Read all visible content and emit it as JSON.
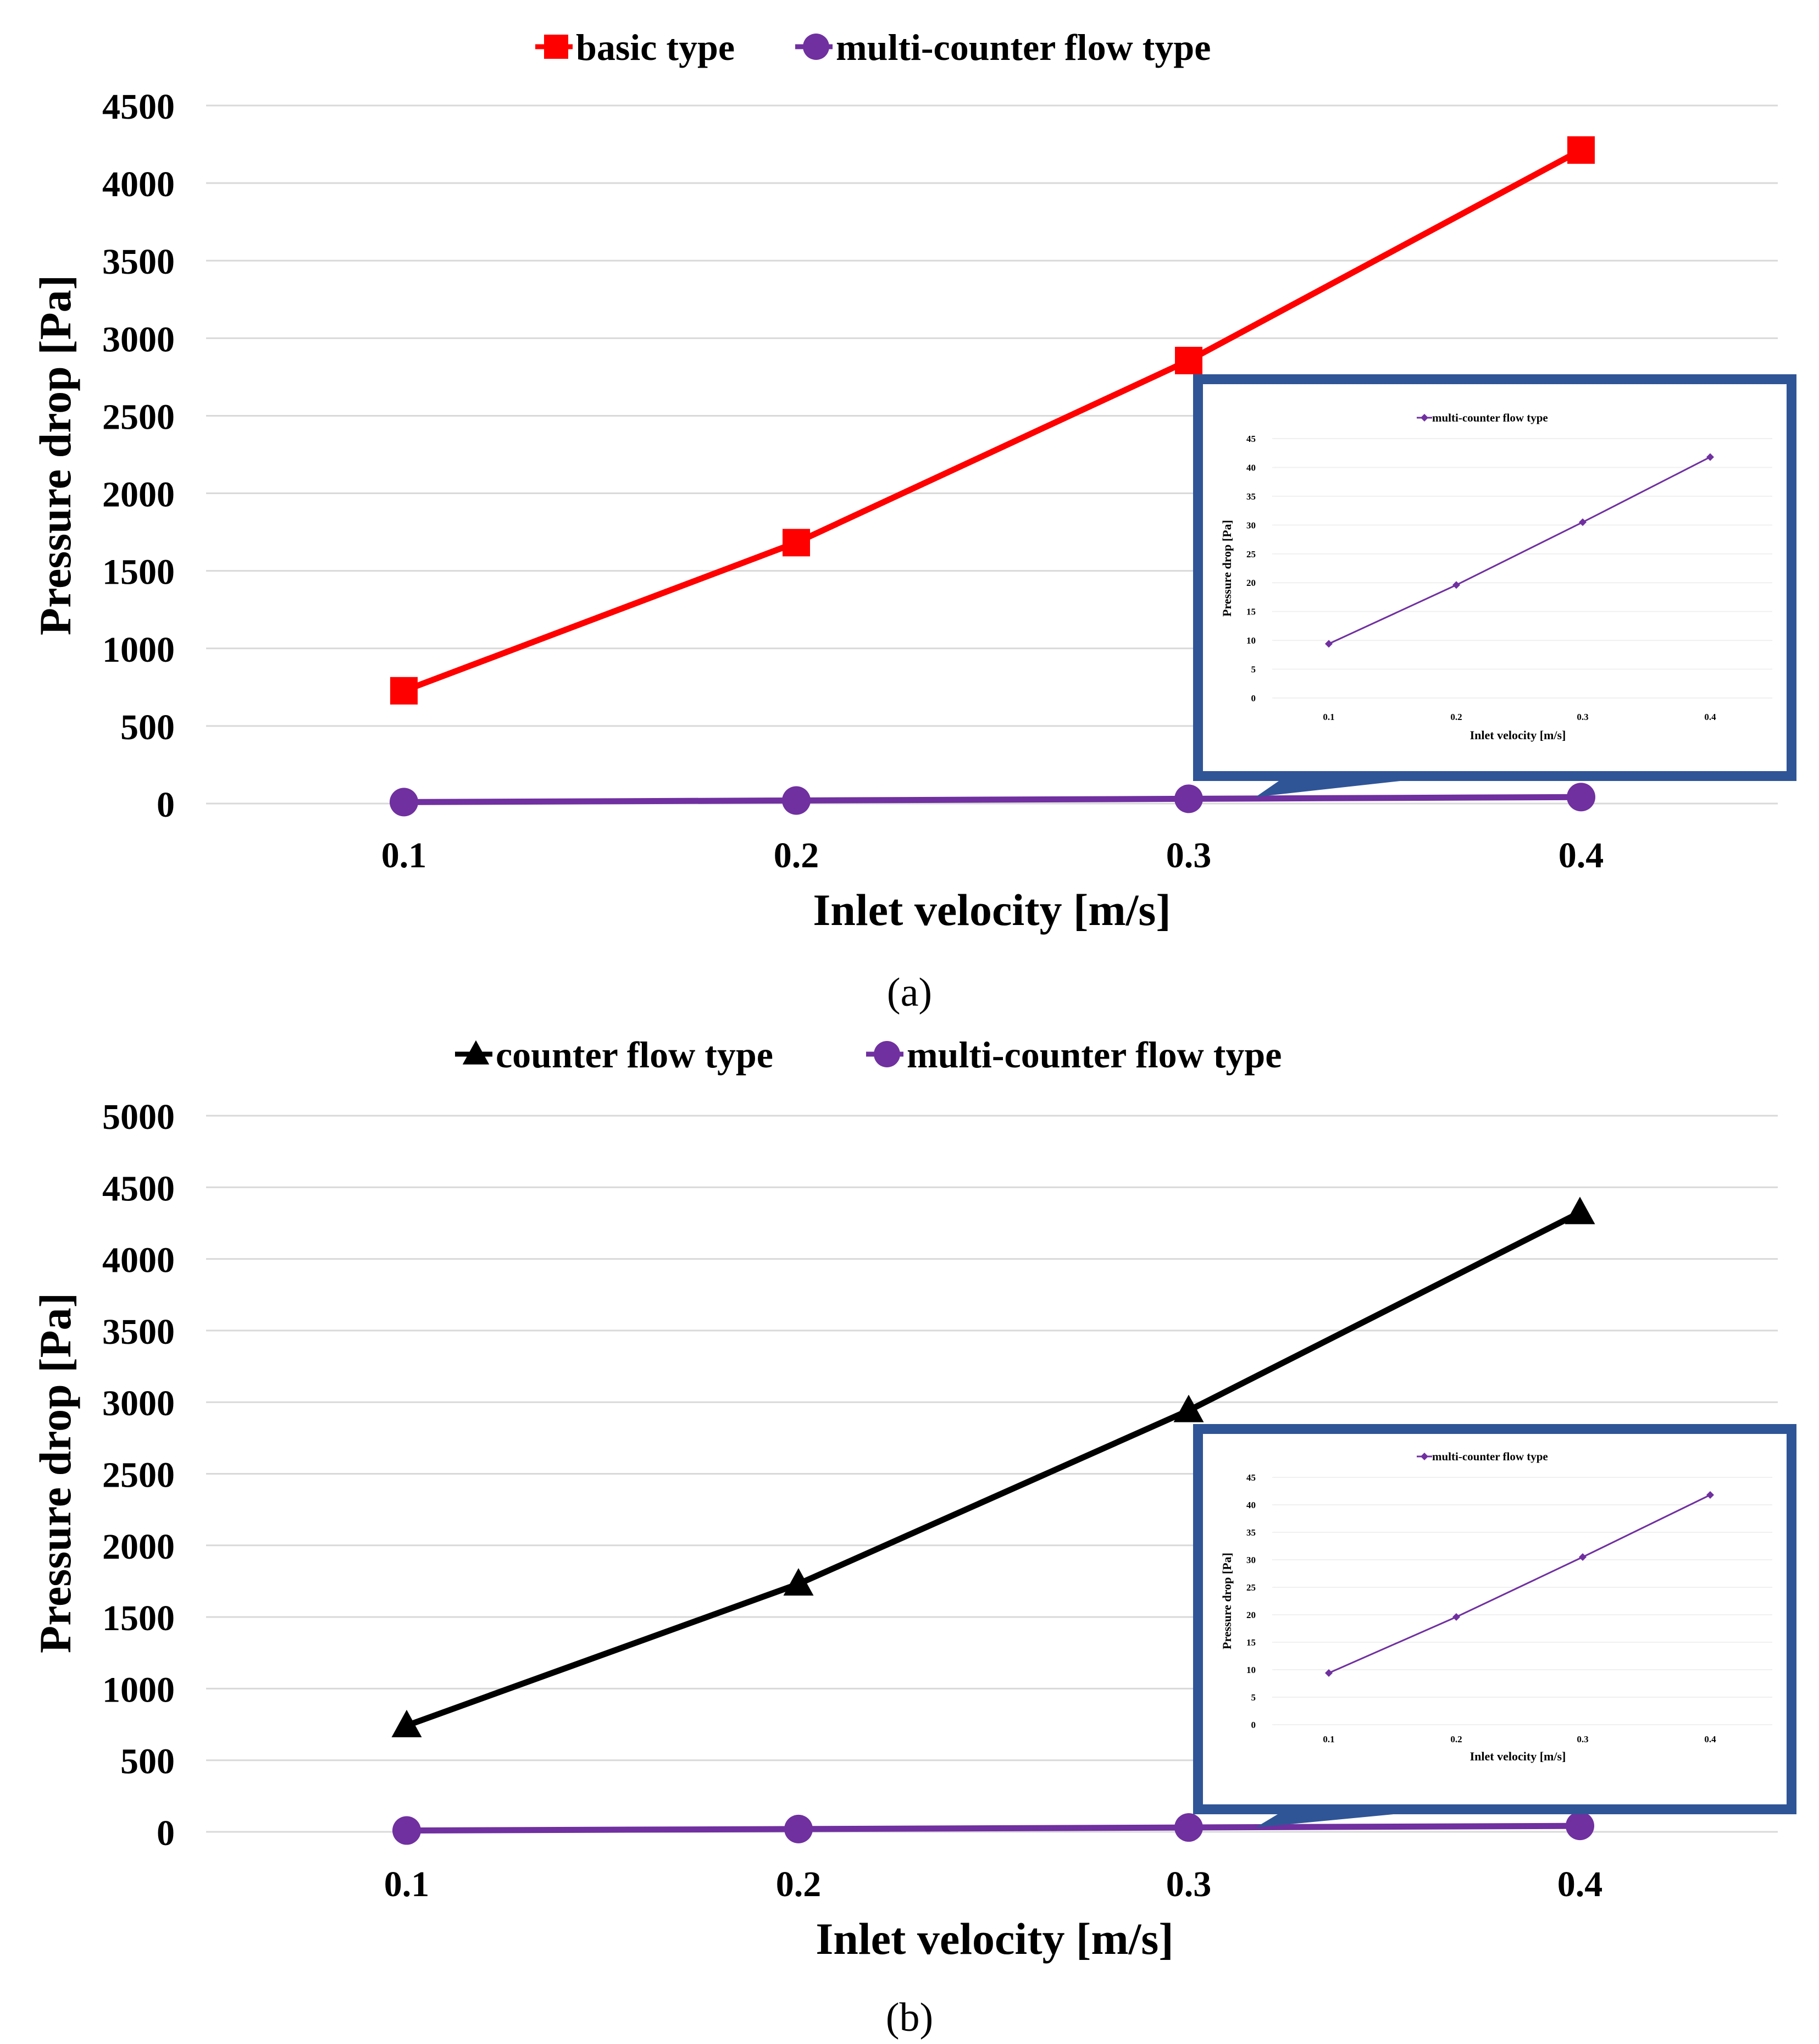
{
  "colors": {
    "basic": "#ff0000",
    "counter": "#000000",
    "multi": "#7030a0",
    "grid": "#d9d9d9",
    "callout": "#2f5597"
  },
  "chart_data": [
    {
      "id": "a",
      "type": "line",
      "caption": "(a)",
      "xlabel": "Inlet velocity [m/s]",
      "ylabel": "Pressure drop [Pa]",
      "categories": [
        "0.1",
        "0.2",
        "0.3",
        "0.4"
      ],
      "ylim": [
        0,
        4500
      ],
      "yticks": [
        0,
        500,
        1000,
        1500,
        2000,
        2500,
        3000,
        3500,
        4000,
        4500
      ],
      "grid": true,
      "legend_position": "top-center",
      "series": [
        {
          "name": "basic type",
          "marker": "square",
          "color": "#ff0000",
          "values": [
            727,
            1682,
            2856,
            4213
          ]
        },
        {
          "name": "multi-counter flow type",
          "marker": "circle",
          "color": "#7030a0",
          "values": [
            9.4,
            19.6,
            30.5,
            41.8
          ]
        }
      ],
      "inset": {
        "type": "line",
        "xlabel": "Inlet velocity [m/s]",
        "ylabel": "Pressure drop [Pa]",
        "categories": [
          "0.1",
          "0.2",
          "0.3",
          "0.4"
        ],
        "ylim": [
          0,
          45
        ],
        "yticks": [
          0,
          5,
          10,
          15,
          20,
          25,
          30,
          35,
          40,
          45
        ],
        "legend_position": "top-center",
        "series": [
          {
            "name": "multi-counter flow type",
            "marker": "diamond",
            "color": "#7030a0",
            "values": [
              9.4,
              19.6,
              30.5,
              41.8
            ]
          }
        ]
      }
    },
    {
      "id": "b",
      "type": "line",
      "caption": "(b)",
      "xlabel": "Inlet velocity [m/s]",
      "ylabel": "Pressure drop [Pa]",
      "categories": [
        "0.1",
        "0.2",
        "0.3",
        "0.4"
      ],
      "ylim": [
        0,
        5000
      ],
      "yticks": [
        0,
        500,
        1000,
        1500,
        2000,
        2500,
        3000,
        3500,
        4000,
        4500,
        5000
      ],
      "grid": true,
      "legend_position": "top-center",
      "series": [
        {
          "name": "counter flow type",
          "marker": "triangle",
          "color": "#000000",
          "values": [
            742,
            1731,
            2942,
            4324
          ]
        },
        {
          "name": "multi-counter flow type",
          "marker": "circle",
          "color": "#7030a0",
          "values": [
            9.4,
            19.6,
            30.5,
            41.8
          ]
        }
      ],
      "inset": {
        "type": "line",
        "xlabel": "Inlet velocity [m/s]",
        "ylabel": "Pressure drop [Pa]",
        "categories": [
          "0.1",
          "0.2",
          "0.3",
          "0.4"
        ],
        "ylim": [
          0,
          45
        ],
        "yticks": [
          0,
          5,
          10,
          15,
          20,
          25,
          30,
          35,
          40,
          45
        ],
        "legend_position": "top-center",
        "series": [
          {
            "name": "multi-counter flow type",
            "marker": "diamond",
            "color": "#7030a0",
            "values": [
              9.4,
              19.6,
              30.5,
              41.8
            ]
          }
        ]
      }
    }
  ]
}
